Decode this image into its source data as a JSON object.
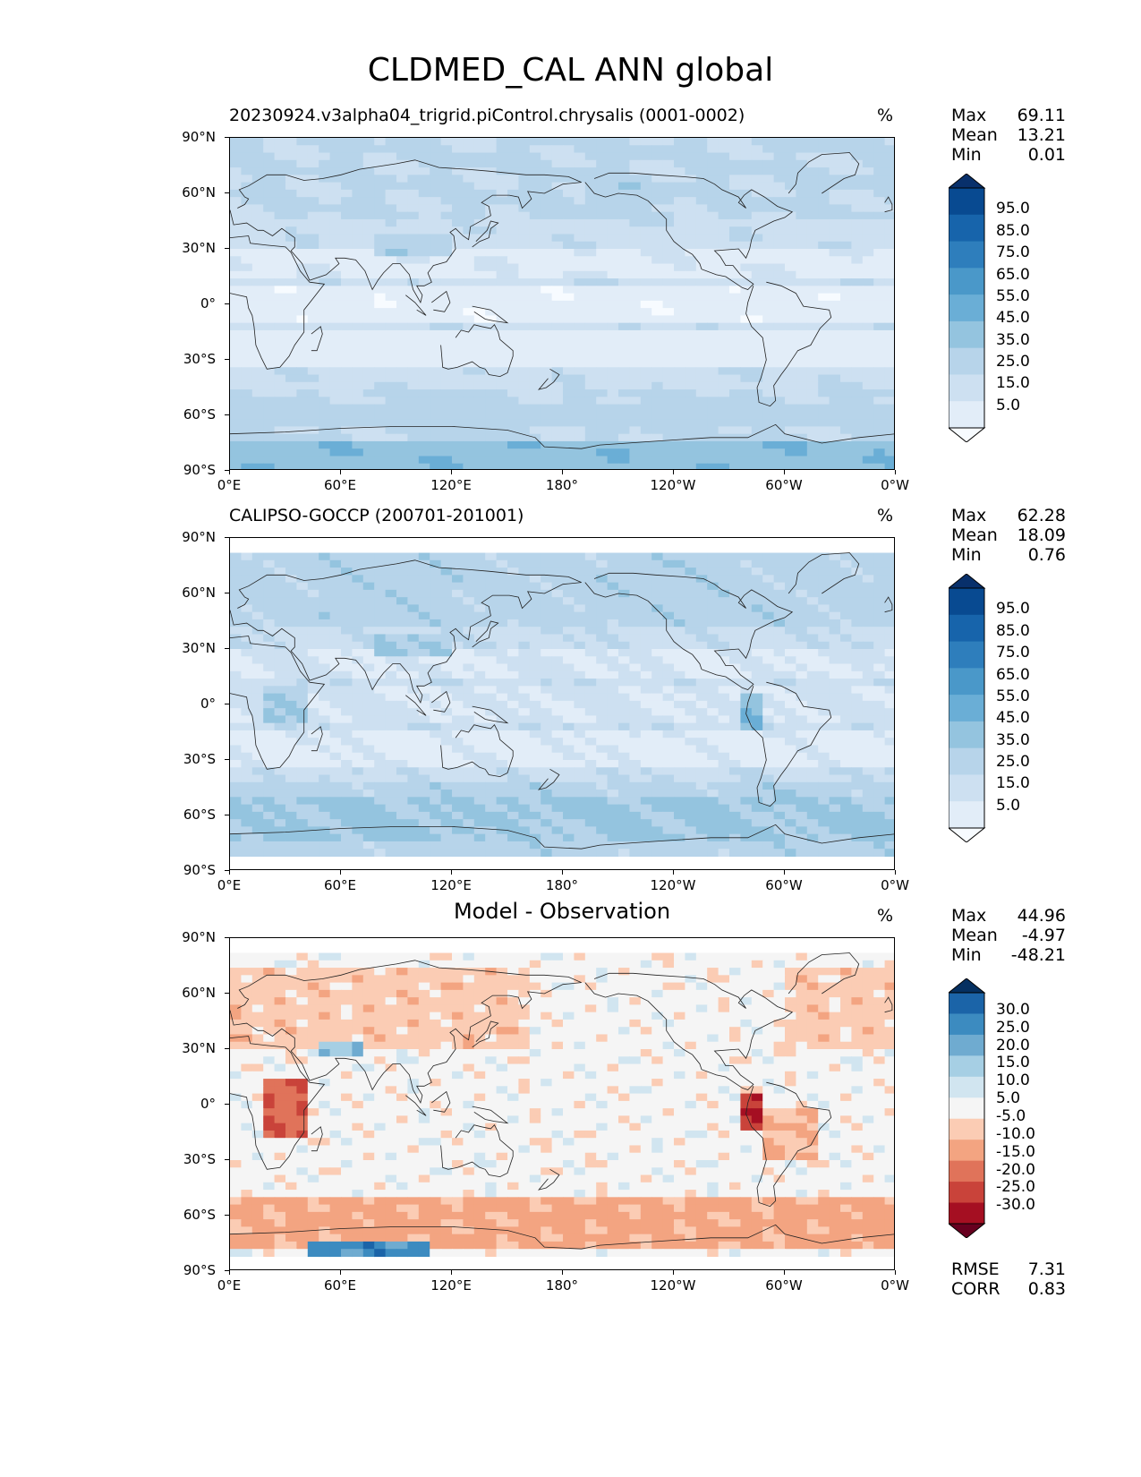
{
  "figure": {
    "title": "CLDMED_CAL ANN global"
  },
  "axes": {
    "lat_ticks": [
      "90°N",
      "60°N",
      "30°N",
      "0°",
      "30°S",
      "60°S",
      "90°S"
    ],
    "lon_ticks": [
      "0°E",
      "60°E",
      "120°E",
      "180°",
      "120°W",
      "60°W",
      "0°W"
    ]
  },
  "panels": [
    {
      "title": "20230924.v3alpha04_trigrid.piControl.chrysalis (0001-0002)",
      "title_style": "left",
      "units": "%",
      "stats": [
        {
          "label": "Max",
          "value": "69.11"
        },
        {
          "label": "Mean",
          "value": "13.21"
        },
        {
          "label": "Min",
          "value": "0.01"
        }
      ],
      "colorbar_labels": [
        "95.0",
        "85.0",
        "75.0",
        "65.0",
        "55.0",
        "45.0",
        "35.0",
        "25.0",
        "15.0",
        "5.0"
      ]
    },
    {
      "title": "CALIPSO-GOCCP (200701-201001)",
      "title_style": "left",
      "units": "%",
      "stats": [
        {
          "label": "Max",
          "value": "62.28"
        },
        {
          "label": "Mean",
          "value": "18.09"
        },
        {
          "label": "Min",
          "value": "0.76"
        }
      ],
      "colorbar_labels": [
        "95.0",
        "85.0",
        "75.0",
        "65.0",
        "55.0",
        "45.0",
        "35.0",
        "25.0",
        "15.0",
        "5.0"
      ]
    },
    {
      "title": "Model - Observation",
      "title_style": "center",
      "units": "%",
      "stats": [
        {
          "label": "Max",
          "value": "44.96"
        },
        {
          "label": "Mean",
          "value": "-4.97"
        },
        {
          "label": "Min",
          "value": "-48.21"
        }
      ],
      "colorbar_labels": [
        "30.0",
        "25.0",
        "20.0",
        "15.0",
        "10.0",
        "5.0",
        "-5.0",
        "-10.0",
        "-15.0",
        "-20.0",
        "-25.0",
        "-30.0"
      ],
      "metrics": [
        {
          "label": "RMSE",
          "value": "7.31"
        },
        {
          "label": "CORR",
          "value": "0.83"
        }
      ]
    }
  ],
  "colors": {
    "blues": [
      "#f7fbff",
      "#e2edf8",
      "#cde0f1",
      "#b7d4ea",
      "#94c4df",
      "#6aaed6",
      "#4a98c9",
      "#2e7ebc",
      "#1764ab",
      "#084a91",
      "#08306b"
    ],
    "diverging": [
      "#67001f",
      "#a50f22",
      "#c9433a",
      "#e0735a",
      "#f3a481",
      "#fbccb4",
      "#f5f5f5",
      "#d1e5f0",
      "#a6cfe4",
      "#6fabd0",
      "#3c8bc0",
      "#1b64a8",
      "#053061"
    ]
  }
}
